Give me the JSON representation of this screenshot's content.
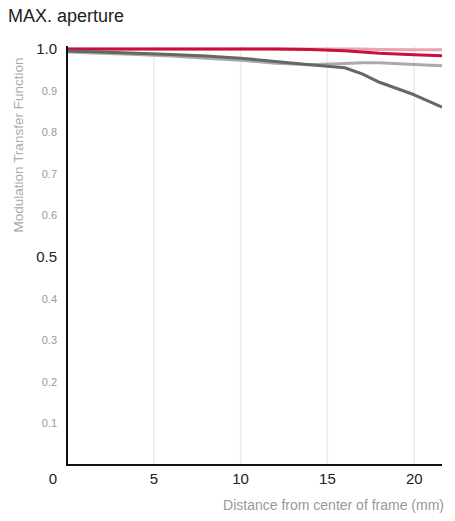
{
  "chart_data": {
    "type": "line",
    "title": "MAX. aperture",
    "x_label": "Distance from center of frame (mm)",
    "y_label": "Modulation Transfer Function",
    "x": [
      0,
      2,
      4,
      6,
      8,
      10,
      12,
      14,
      16,
      17,
      18,
      20,
      21.6
    ],
    "series": [
      {
        "color": "#eba3b4",
        "values": [
          1.0,
          1.0,
          1.0,
          1.0,
          1.0,
          1.0,
          1.0,
          1.0,
          1.0,
          1.0,
          0.999,
          0.998,
          0.998
        ]
      },
      {
        "color": "#c8103c",
        "values": [
          1.0,
          1.0,
          1.0,
          1.0,
          1.0,
          1.0,
          1.0,
          0.999,
          0.996,
          0.993,
          0.99,
          0.986,
          0.984
        ]
      },
      {
        "color": "#aaaaaa",
        "values": [
          0.993,
          0.99,
          0.987,
          0.983,
          0.978,
          0.973,
          0.966,
          0.962,
          0.965,
          0.967,
          0.967,
          0.963,
          0.96
        ]
      },
      {
        "color": "#666666",
        "values": [
          0.995,
          0.993,
          0.99,
          0.987,
          0.983,
          0.978,
          0.97,
          0.962,
          0.955,
          0.94,
          0.92,
          0.89,
          0.86
        ]
      }
    ],
    "xlim": [
      0,
      21.6
    ],
    "ylim": [
      0,
      1
    ],
    "xticks": [
      0,
      5,
      10,
      15,
      20
    ],
    "yticks": [
      0.1,
      0.2,
      0.3,
      0.4,
      0.5,
      0.6,
      0.7,
      0.8,
      0.9,
      {
        "value": 1,
        "label": "1.0"
      }
    ],
    "grid": true
  }
}
